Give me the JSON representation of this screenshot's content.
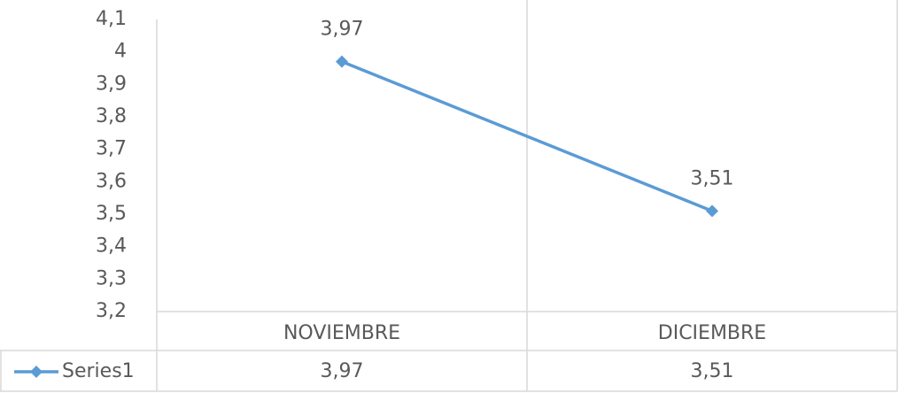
{
  "chart_data": {
    "type": "line",
    "categories": [
      "NOVIEMBRE",
      "DICIEMBRE"
    ],
    "series": [
      {
        "name": "Series1",
        "color": "#5b9bd5",
        "values": [
          3.97,
          3.51
        ],
        "value_labels": [
          "3,97",
          "3,51"
        ]
      }
    ],
    "ylim": [
      3.2,
      4.1
    ],
    "yticks": [
      {
        "value": 3.2,
        "label": "3,2"
      },
      {
        "value": 3.3,
        "label": "3,3"
      },
      {
        "value": 3.4,
        "label": "3,4"
      },
      {
        "value": 3.5,
        "label": "3,5"
      },
      {
        "value": 3.6,
        "label": "3,6"
      },
      {
        "value": 3.7,
        "label": "3,7"
      },
      {
        "value": 3.8,
        "label": "3,8"
      },
      {
        "value": 3.9,
        "label": "3,9"
      },
      4,
      {
        "value": 4.1,
        "label": "4,1"
      }
    ],
    "grid": false,
    "data_table": true
  }
}
